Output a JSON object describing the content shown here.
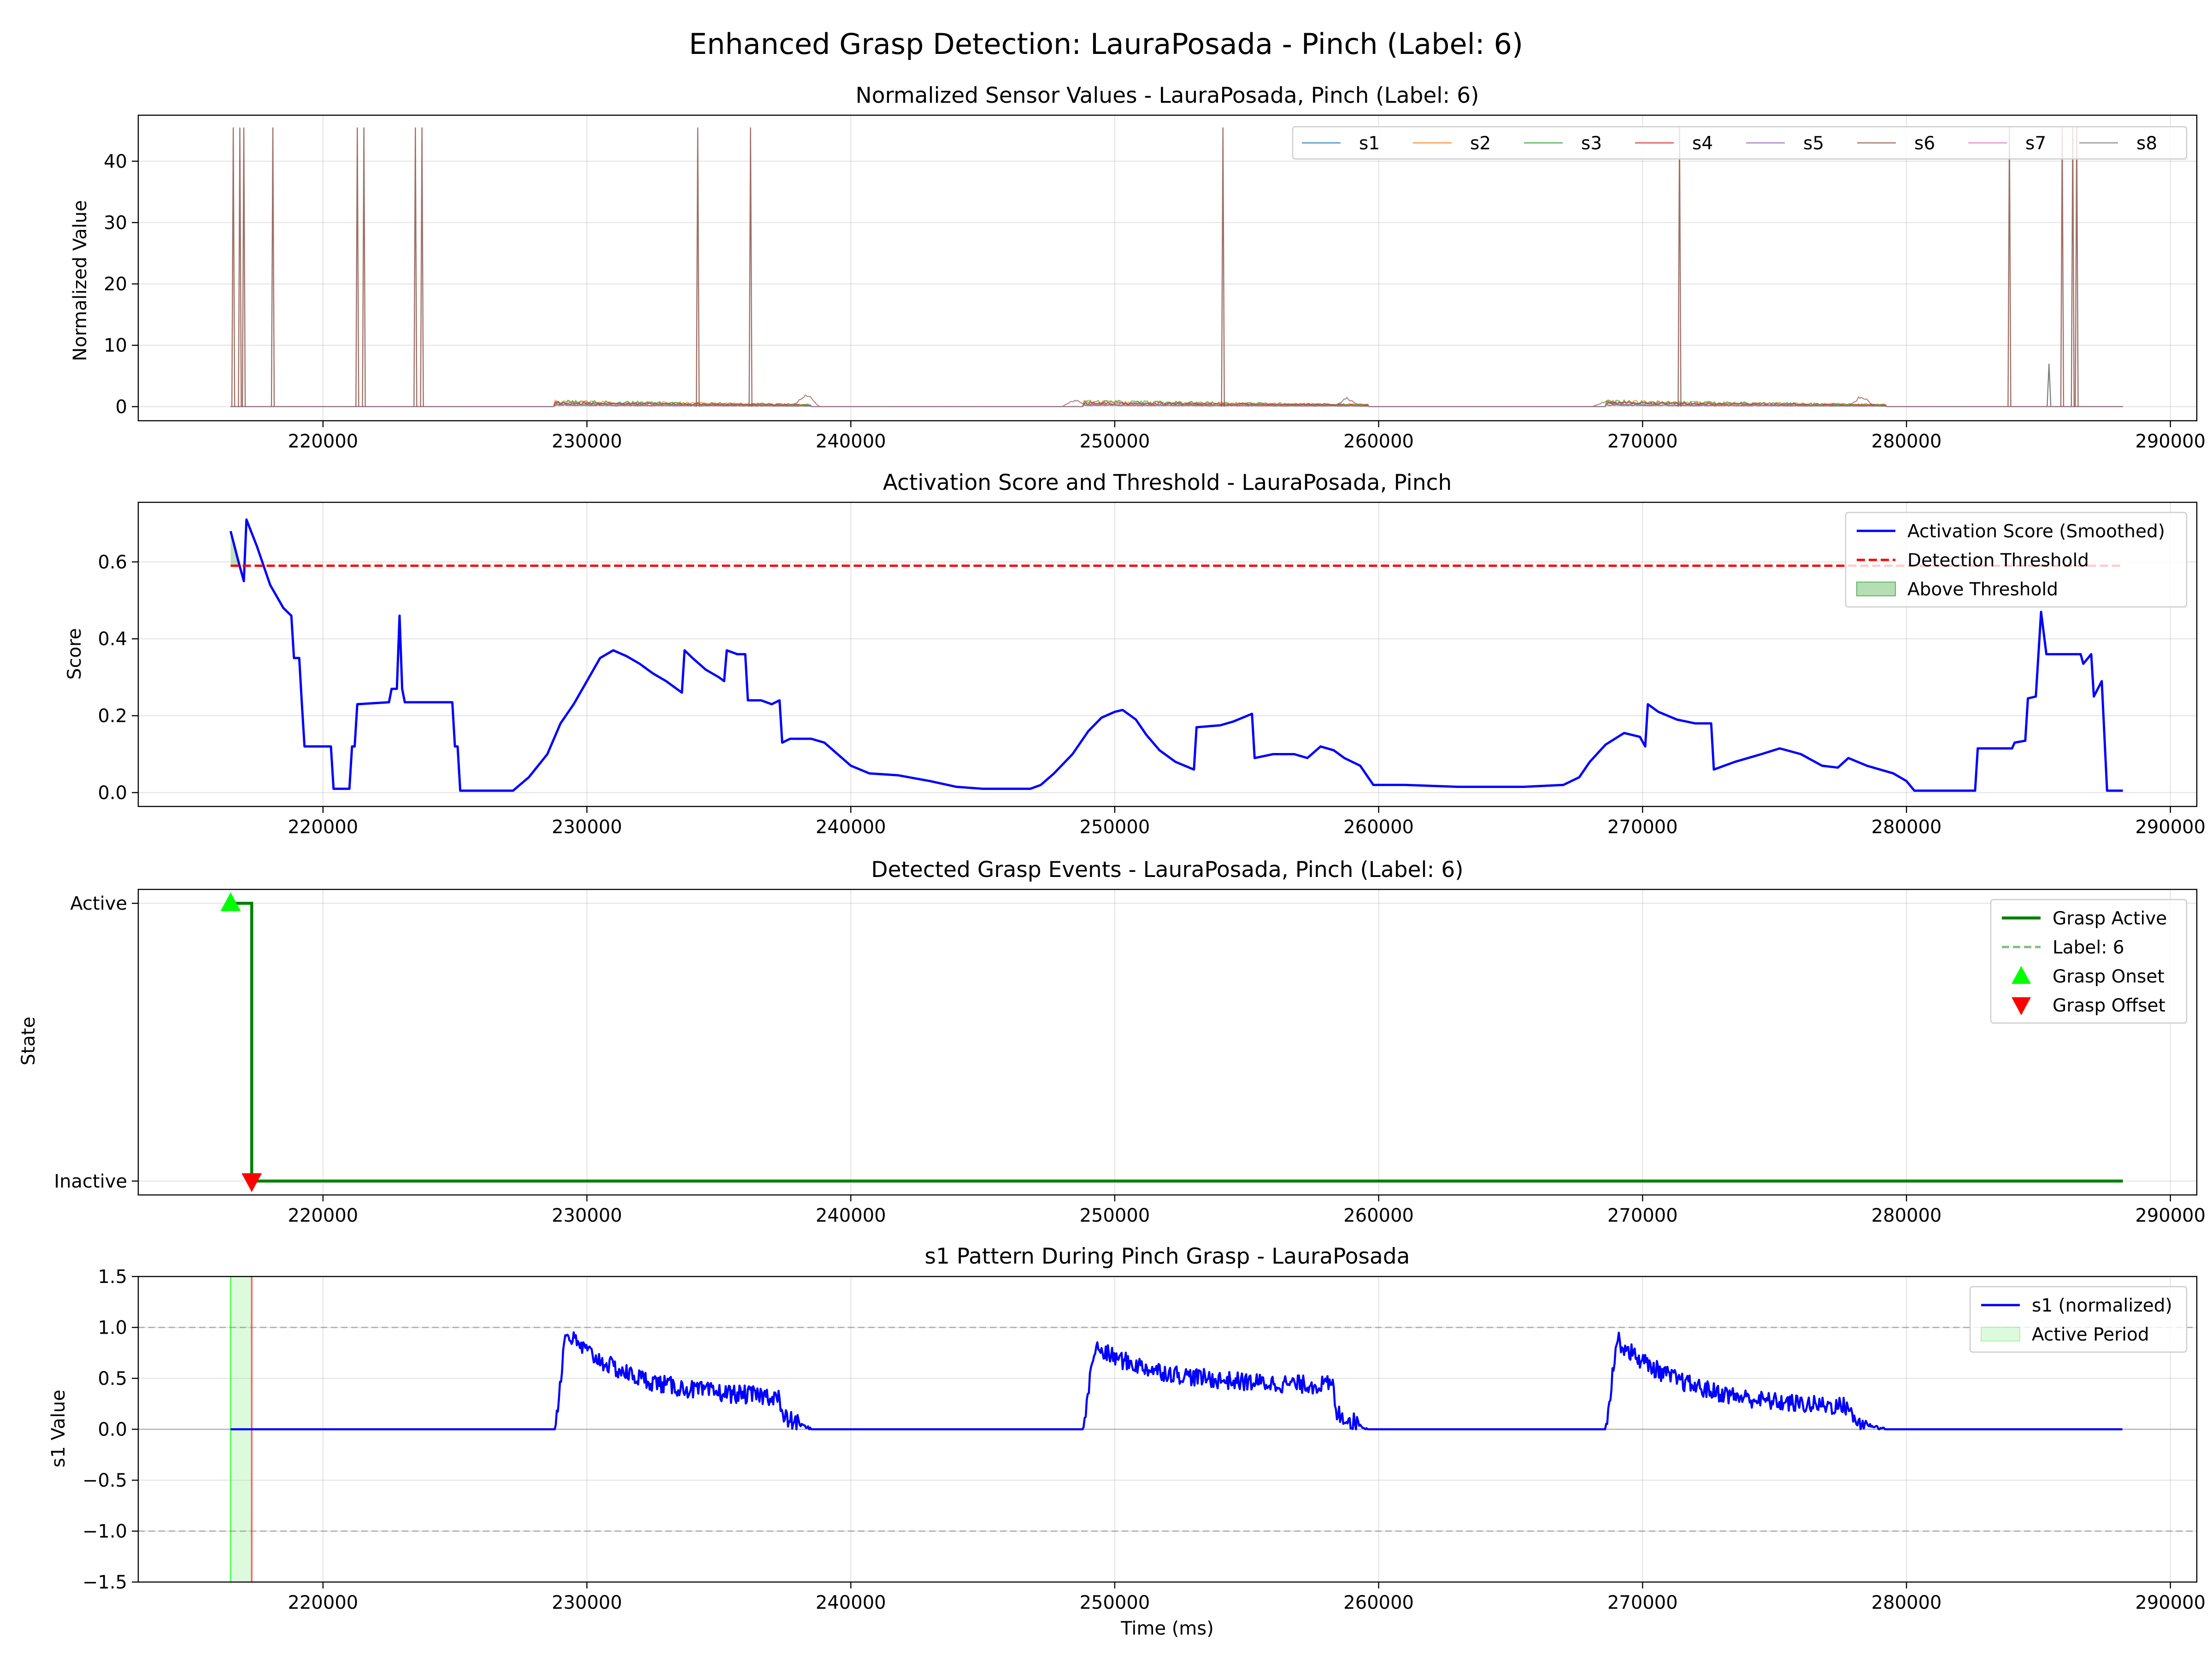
{
  "figure_title": "Enhanced Grasp Detection: LauraPosada - Pinch (Label: 6)",
  "x_axis_label": "Time (ms)",
  "x_ticks": [
    "220000",
    "230000",
    "240000",
    "250000",
    "260000",
    "270000",
    "280000",
    "290000"
  ],
  "colors": {
    "s1": "#1f77b4",
    "s2": "#ff7f0e",
    "s3": "#2ca02c",
    "s4": "#d62728",
    "s5": "#9467bd",
    "s6": "#8c564b",
    "s7": "#e377c2",
    "s8": "#7f7f7f",
    "score": "#0000ff",
    "threshold": "#ff0000",
    "active": "#008000",
    "onset": "#00ff00",
    "offset": "#ff0000",
    "above_fill": "#2ca02c"
  },
  "chart_data": [
    {
      "type": "line",
      "title": "Normalized Sensor Values - LauraPosada, Pinch (Label: 6)",
      "xlabel": "",
      "ylabel": "Normalized Value",
      "xlim": [
        213000,
        291000
      ],
      "ylim": [
        -2.3,
        47.5
      ],
      "yticks": [
        "0",
        "10",
        "20",
        "30",
        "40"
      ],
      "grid": true,
      "legend_position": "top-right",
      "series_names": [
        "s1",
        "s2",
        "s3",
        "s4",
        "s5",
        "s6",
        "s7",
        "s8"
      ],
      "spikes_s6": [
        {
          "x": 216600,
          "y": 45.5
        },
        {
          "x": 216850,
          "y": 45.5
        },
        {
          "x": 217000,
          "y": 45.5
        },
        {
          "x": 218100,
          "y": 45.5
        },
        {
          "x": 221300,
          "y": 45.5
        },
        {
          "x": 221550,
          "y": 45.5
        },
        {
          "x": 223500,
          "y": 45.5
        },
        {
          "x": 223750,
          "y": 45.5
        },
        {
          "x": 234200,
          "y": 45.5
        },
        {
          "x": 236200,
          "y": 45.5
        },
        {
          "x": 254100,
          "y": 45.5
        },
        {
          "x": 271400,
          "y": 45.5
        },
        {
          "x": 283900,
          "y": 45.5
        },
        {
          "x": 285900,
          "y": 45.5
        },
        {
          "x": 286300,
          "y": 45.5
        },
        {
          "x": 286450,
          "y": 45.5
        }
      ],
      "spike_s8": {
        "x": 285400,
        "y": 7
      },
      "bumps_s6": [
        {
          "x": 238300,
          "y": 2.6
        },
        {
          "x": 248500,
          "y": 1.3
        },
        {
          "x": 258800,
          "y": 1.6
        },
        {
          "x": 268600,
          "y": 1.0
        },
        {
          "x": 278300,
          "y": 2.1
        }
      ],
      "activity_segments": [
        [
          228800,
          238500
        ],
        [
          248800,
          259600
        ],
        [
          268600,
          279200
        ]
      ],
      "x_range": [
        216500,
        288200
      ]
    },
    {
      "type": "line",
      "title": "Activation Score and Threshold - LauraPosada, Pinch",
      "xlabel": "",
      "ylabel": "Score",
      "xlim": [
        213000,
        291000
      ],
      "ylim": [
        -0.036,
        0.755
      ],
      "yticks": [
        "0.0",
        "0.2",
        "0.4",
        "0.6"
      ],
      "grid": true,
      "legend_position": "top-right",
      "legend": [
        "Activation Score (Smoothed)",
        "Detection Threshold",
        "Above Threshold"
      ],
      "threshold": {
        "value": 0.59,
        "x": [
          216500,
          288200
        ]
      },
      "series": [
        {
          "name": "Activation Score (Smoothed)",
          "points": [
            [
              216500,
              0.68
            ],
            [
              216800,
              0.6
            ],
            [
              217000,
              0.55
            ],
            [
              217100,
              0.71
            ],
            [
              217500,
              0.64
            ],
            [
              218000,
              0.54
            ],
            [
              218500,
              0.48
            ],
            [
              218800,
              0.46
            ],
            [
              218900,
              0.35
            ],
            [
              219100,
              0.35
            ],
            [
              219200,
              0.23
            ],
            [
              219300,
              0.12
            ],
            [
              220300,
              0.12
            ],
            [
              220400,
              0.01
            ],
            [
              221000,
              0.01
            ],
            [
              221100,
              0.12
            ],
            [
              221200,
              0.12
            ],
            [
              221300,
              0.23
            ],
            [
              222500,
              0.235
            ],
            [
              222600,
              0.27
            ],
            [
              222800,
              0.27
            ],
            [
              222900,
              0.46
            ],
            [
              223000,
              0.27
            ],
            [
              223100,
              0.235
            ],
            [
              224900,
              0.235
            ],
            [
              225000,
              0.12
            ],
            [
              225100,
              0.12
            ],
            [
              225200,
              0.005
            ],
            [
              227200,
              0.005
            ],
            [
              227800,
              0.04
            ],
            [
              228500,
              0.1
            ],
            [
              229000,
              0.18
            ],
            [
              229500,
              0.23
            ],
            [
              230000,
              0.29
            ],
            [
              230500,
              0.35
            ],
            [
              231000,
              0.37
            ],
            [
              231500,
              0.355
            ],
            [
              232000,
              0.335
            ],
            [
              232500,
              0.31
            ],
            [
              233000,
              0.29
            ],
            [
              233600,
              0.26
            ],
            [
              233700,
              0.37
            ],
            [
              234000,
              0.35
            ],
            [
              234500,
              0.32
            ],
            [
              235000,
              0.3
            ],
            [
              235200,
              0.29
            ],
            [
              235300,
              0.37
            ],
            [
              235700,
              0.36
            ],
            [
              236000,
              0.36
            ],
            [
              236100,
              0.24
            ],
            [
              236600,
              0.24
            ],
            [
              237000,
              0.23
            ],
            [
              237300,
              0.24
            ],
            [
              237400,
              0.13
            ],
            [
              237700,
              0.14
            ],
            [
              238500,
              0.14
            ],
            [
              239000,
              0.13
            ],
            [
              239500,
              0.1
            ],
            [
              240000,
              0.07
            ],
            [
              240700,
              0.05
            ],
            [
              241800,
              0.045
            ],
            [
              243000,
              0.03
            ],
            [
              244000,
              0.015
            ],
            [
              245000,
              0.01
            ],
            [
              246800,
              0.01
            ],
            [
              247200,
              0.02
            ],
            [
              247700,
              0.05
            ],
            [
              248400,
              0.1
            ],
            [
              249000,
              0.16
            ],
            [
              249500,
              0.195
            ],
            [
              250000,
              0.21
            ],
            [
              250300,
              0.215
            ],
            [
              250800,
              0.19
            ],
            [
              251200,
              0.15
            ],
            [
              251700,
              0.11
            ],
            [
              252300,
              0.08
            ],
            [
              253000,
              0.06
            ],
            [
              253100,
              0.17
            ],
            [
              254000,
              0.175
            ],
            [
              254500,
              0.185
            ],
            [
              255200,
              0.205
            ],
            [
              255300,
              0.09
            ],
            [
              256000,
              0.1
            ],
            [
              256800,
              0.1
            ],
            [
              257300,
              0.09
            ],
            [
              257800,
              0.12
            ],
            [
              258300,
              0.11
            ],
            [
              258700,
              0.09
            ],
            [
              259300,
              0.07
            ],
            [
              259800,
              0.02
            ],
            [
              261000,
              0.02
            ],
            [
              263000,
              0.015
            ],
            [
              265500,
              0.015
            ],
            [
              267000,
              0.02
            ],
            [
              267600,
              0.04
            ],
            [
              268000,
              0.08
            ],
            [
              268600,
              0.125
            ],
            [
              269300,
              0.155
            ],
            [
              269900,
              0.145
            ],
            [
              270100,
              0.12
            ],
            [
              270200,
              0.23
            ],
            [
              270600,
              0.21
            ],
            [
              271300,
              0.19
            ],
            [
              272000,
              0.18
            ],
            [
              272600,
              0.18
            ],
            [
              272700,
              0.06
            ],
            [
              273500,
              0.08
            ],
            [
              274500,
              0.1
            ],
            [
              275200,
              0.115
            ],
            [
              276000,
              0.1
            ],
            [
              276800,
              0.07
            ],
            [
              277400,
              0.065
            ],
            [
              277800,
              0.09
            ],
            [
              278500,
              0.07
            ],
            [
              279500,
              0.05
            ],
            [
              280000,
              0.03
            ],
            [
              280300,
              0.005
            ],
            [
              282600,
              0.005
            ],
            [
              282700,
              0.115
            ],
            [
              284000,
              0.115
            ],
            [
              284100,
              0.13
            ],
            [
              284500,
              0.135
            ],
            [
              284600,
              0.245
            ],
            [
              284900,
              0.25
            ],
            [
              285100,
              0.47
            ],
            [
              285300,
              0.36
            ],
            [
              286600,
              0.36
            ],
            [
              286700,
              0.335
            ],
            [
              287000,
              0.36
            ],
            [
              287100,
              0.25
            ],
            [
              287400,
              0.29
            ],
            [
              287600,
              0.005
            ],
            [
              288200,
              0.005
            ]
          ]
        }
      ],
      "above_threshold_segments": [
        [
          216500,
          216850
        ],
        [
          217100,
          217300
        ]
      ]
    },
    {
      "type": "line",
      "title": "Detected Grasp Events - LauraPosada, Pinch (Label: 6)",
      "xlabel": "",
      "ylabel": "State",
      "xlim": [
        213000,
        291000
      ],
      "ylim": [
        -0.05,
        1.05
      ],
      "ytick_labels": [
        "Inactive",
        "Active"
      ],
      "grid": true,
      "legend_position": "top-right",
      "legend": [
        "Grasp Active",
        "Label: 6",
        "Grasp Onset",
        "Grasp Offset"
      ],
      "state_steps": [
        [
          216500,
          1
        ],
        [
          217300,
          1
        ],
        [
          217300,
          0
        ],
        [
          288200,
          0
        ]
      ],
      "onsets": [
        216500
      ],
      "offsets": [
        217300
      ]
    },
    {
      "type": "line",
      "title": "s1 Pattern During Pinch Grasp - LauraPosada",
      "xlabel": "Time (ms)",
      "ylabel": "s1 Value",
      "xlim": [
        213000,
        291000
      ],
      "ylim": [
        -1.5,
        1.5
      ],
      "yticks": [
        "1.5",
        "1.0",
        "0.5",
        "0.0",
        "−0.5",
        "−1.0",
        "−1.5"
      ],
      "grid": true,
      "legend_position": "top-right",
      "legend": [
        "s1 (normalized)",
        "Active Period"
      ],
      "reference_lines": [
        1.0,
        -1.0,
        0.0
      ],
      "active_period": [
        216500,
        217300
      ],
      "segments": [
        {
          "start": 228800,
          "end": 238500,
          "peak": 0.95,
          "tail": 0.3
        },
        {
          "start": 248800,
          "end": 259600,
          "peak": 0.8,
          "tail": 0.42
        },
        {
          "start": 268600,
          "end": 279200,
          "peak": 0.88,
          "tail": 0.2
        }
      ],
      "x_range": [
        216500,
        288200
      ]
    }
  ]
}
